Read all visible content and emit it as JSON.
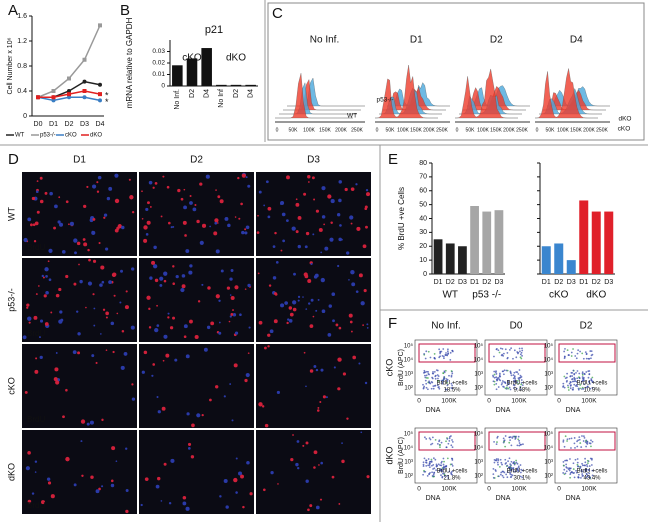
{
  "panel_labels": [
    "A",
    "B",
    "C",
    "D",
    "E",
    "F"
  ],
  "chart_data": [
    {
      "type": "line",
      "y_label": "Cell Number x 10⁶",
      "categories": [
        "D0",
        "D1",
        "D2",
        "D3",
        "D4"
      ],
      "ylim": [
        0,
        1.6
      ],
      "yticks": [
        0,
        0.4,
        0.8,
        1.2,
        1.6
      ],
      "series": [
        {
          "name": "WT",
          "color": "#222222",
          "marker": "circle",
          "values": [
            0.3,
            0.3,
            0.4,
            0.55,
            0.5
          ]
        },
        {
          "name": "p53-/-",
          "color": "#999999",
          "marker": "square",
          "values": [
            0.3,
            0.4,
            0.6,
            0.9,
            1.45
          ]
        },
        {
          "name": "cKO",
          "color": "#3a7ec4",
          "marker": "circle",
          "values": [
            0.3,
            0.25,
            0.3,
            0.3,
            0.25
          ]
        },
        {
          "name": "dKO",
          "color": "#e02020",
          "marker": "square",
          "values": [
            0.3,
            0.3,
            0.35,
            0.4,
            0.35
          ]
        }
      ],
      "annotations": [
        "*",
        "*"
      ]
    },
    {
      "type": "bar",
      "title": "p21",
      "y_label": "mRNA relative to GAPDH",
      "categories": [
        "No Inf.",
        "D2",
        "D4",
        "No Inf",
        "D2",
        "D4"
      ],
      "values": [
        0.018,
        0.024,
        0.033,
        0.001,
        0.001,
        0.001
      ],
      "colors": [
        "#111111",
        "#111111",
        "#111111",
        "#111111",
        "#111111",
        "#111111"
      ],
      "group_labels": [
        "cKO",
        "dKO"
      ],
      "ylim": [
        0,
        0.04
      ],
      "yticks": [
        0,
        0.01,
        0.02,
        0.03
      ]
    },
    {
      "type": "bar",
      "y_label": "% BrdU +ve Cells",
      "categories": [
        "D1",
        "D2",
        "D3",
        "D1",
        "D2",
        "D3"
      ],
      "values": [
        25,
        22,
        20,
        49,
        45,
        46
      ],
      "colors": [
        "#222222",
        "#222222",
        "#222222",
        "#a6a6a6",
        "#a6a6a6",
        "#a6a6a6"
      ],
      "group_labels": [
        "WT",
        "p53 -/-"
      ],
      "ylim": [
        0,
        80
      ],
      "yticks": [
        0,
        10,
        20,
        30,
        40,
        50,
        60,
        70,
        80
      ]
    },
    {
      "type": "bar",
      "categories": [
        "D1",
        "D2",
        "D3",
        "D1",
        "D2",
        "D3"
      ],
      "values": [
        20,
        22,
        10,
        53,
        45,
        45
      ],
      "colors": [
        "#3a86cf",
        "#3a86cf",
        "#3a86cf",
        "#e0202a",
        "#e0202a",
        "#e0202a"
      ],
      "group_labels": [
        "cKO",
        "dKO"
      ],
      "ylim": [
        0,
        80
      ],
      "yticks": [
        0,
        10,
        20,
        30,
        40,
        50,
        60,
        70,
        80
      ]
    }
  ],
  "panel_c": {
    "conditions": [
      "No Inf.",
      "D1",
      "D2",
      "D4"
    ],
    "xticks": [
      "0",
      "50K",
      "100K",
      "150K",
      "200K",
      "250K"
    ],
    "labels": [
      "p53-/-",
      "WT",
      "dKO",
      "cKO"
    ]
  },
  "panel_d": {
    "columns": [
      "D1",
      "D2",
      "D3"
    ],
    "rows": [
      "WT",
      "p53-/-",
      "cKO",
      "dKO"
    ],
    "stain": "BrdU"
  },
  "panel_f": {
    "columns": [
      "No Inf.",
      "D0",
      "D2"
    ],
    "rows": [
      "cKO",
      "dKO"
    ],
    "y_label": "BrdU (APC)",
    "x_label": "DNA",
    "yticks": [
      "10⁵",
      "10⁴",
      "10³",
      "10²"
    ],
    "xticks": [
      "0",
      "100K"
    ],
    "gate_label": "BrdU +cells",
    "percentages": [
      [
        "18.5%",
        "9.48%",
        "10.9%"
      ],
      [
        "21.8%",
        "30.1%",
        "43.4%"
      ]
    ]
  }
}
